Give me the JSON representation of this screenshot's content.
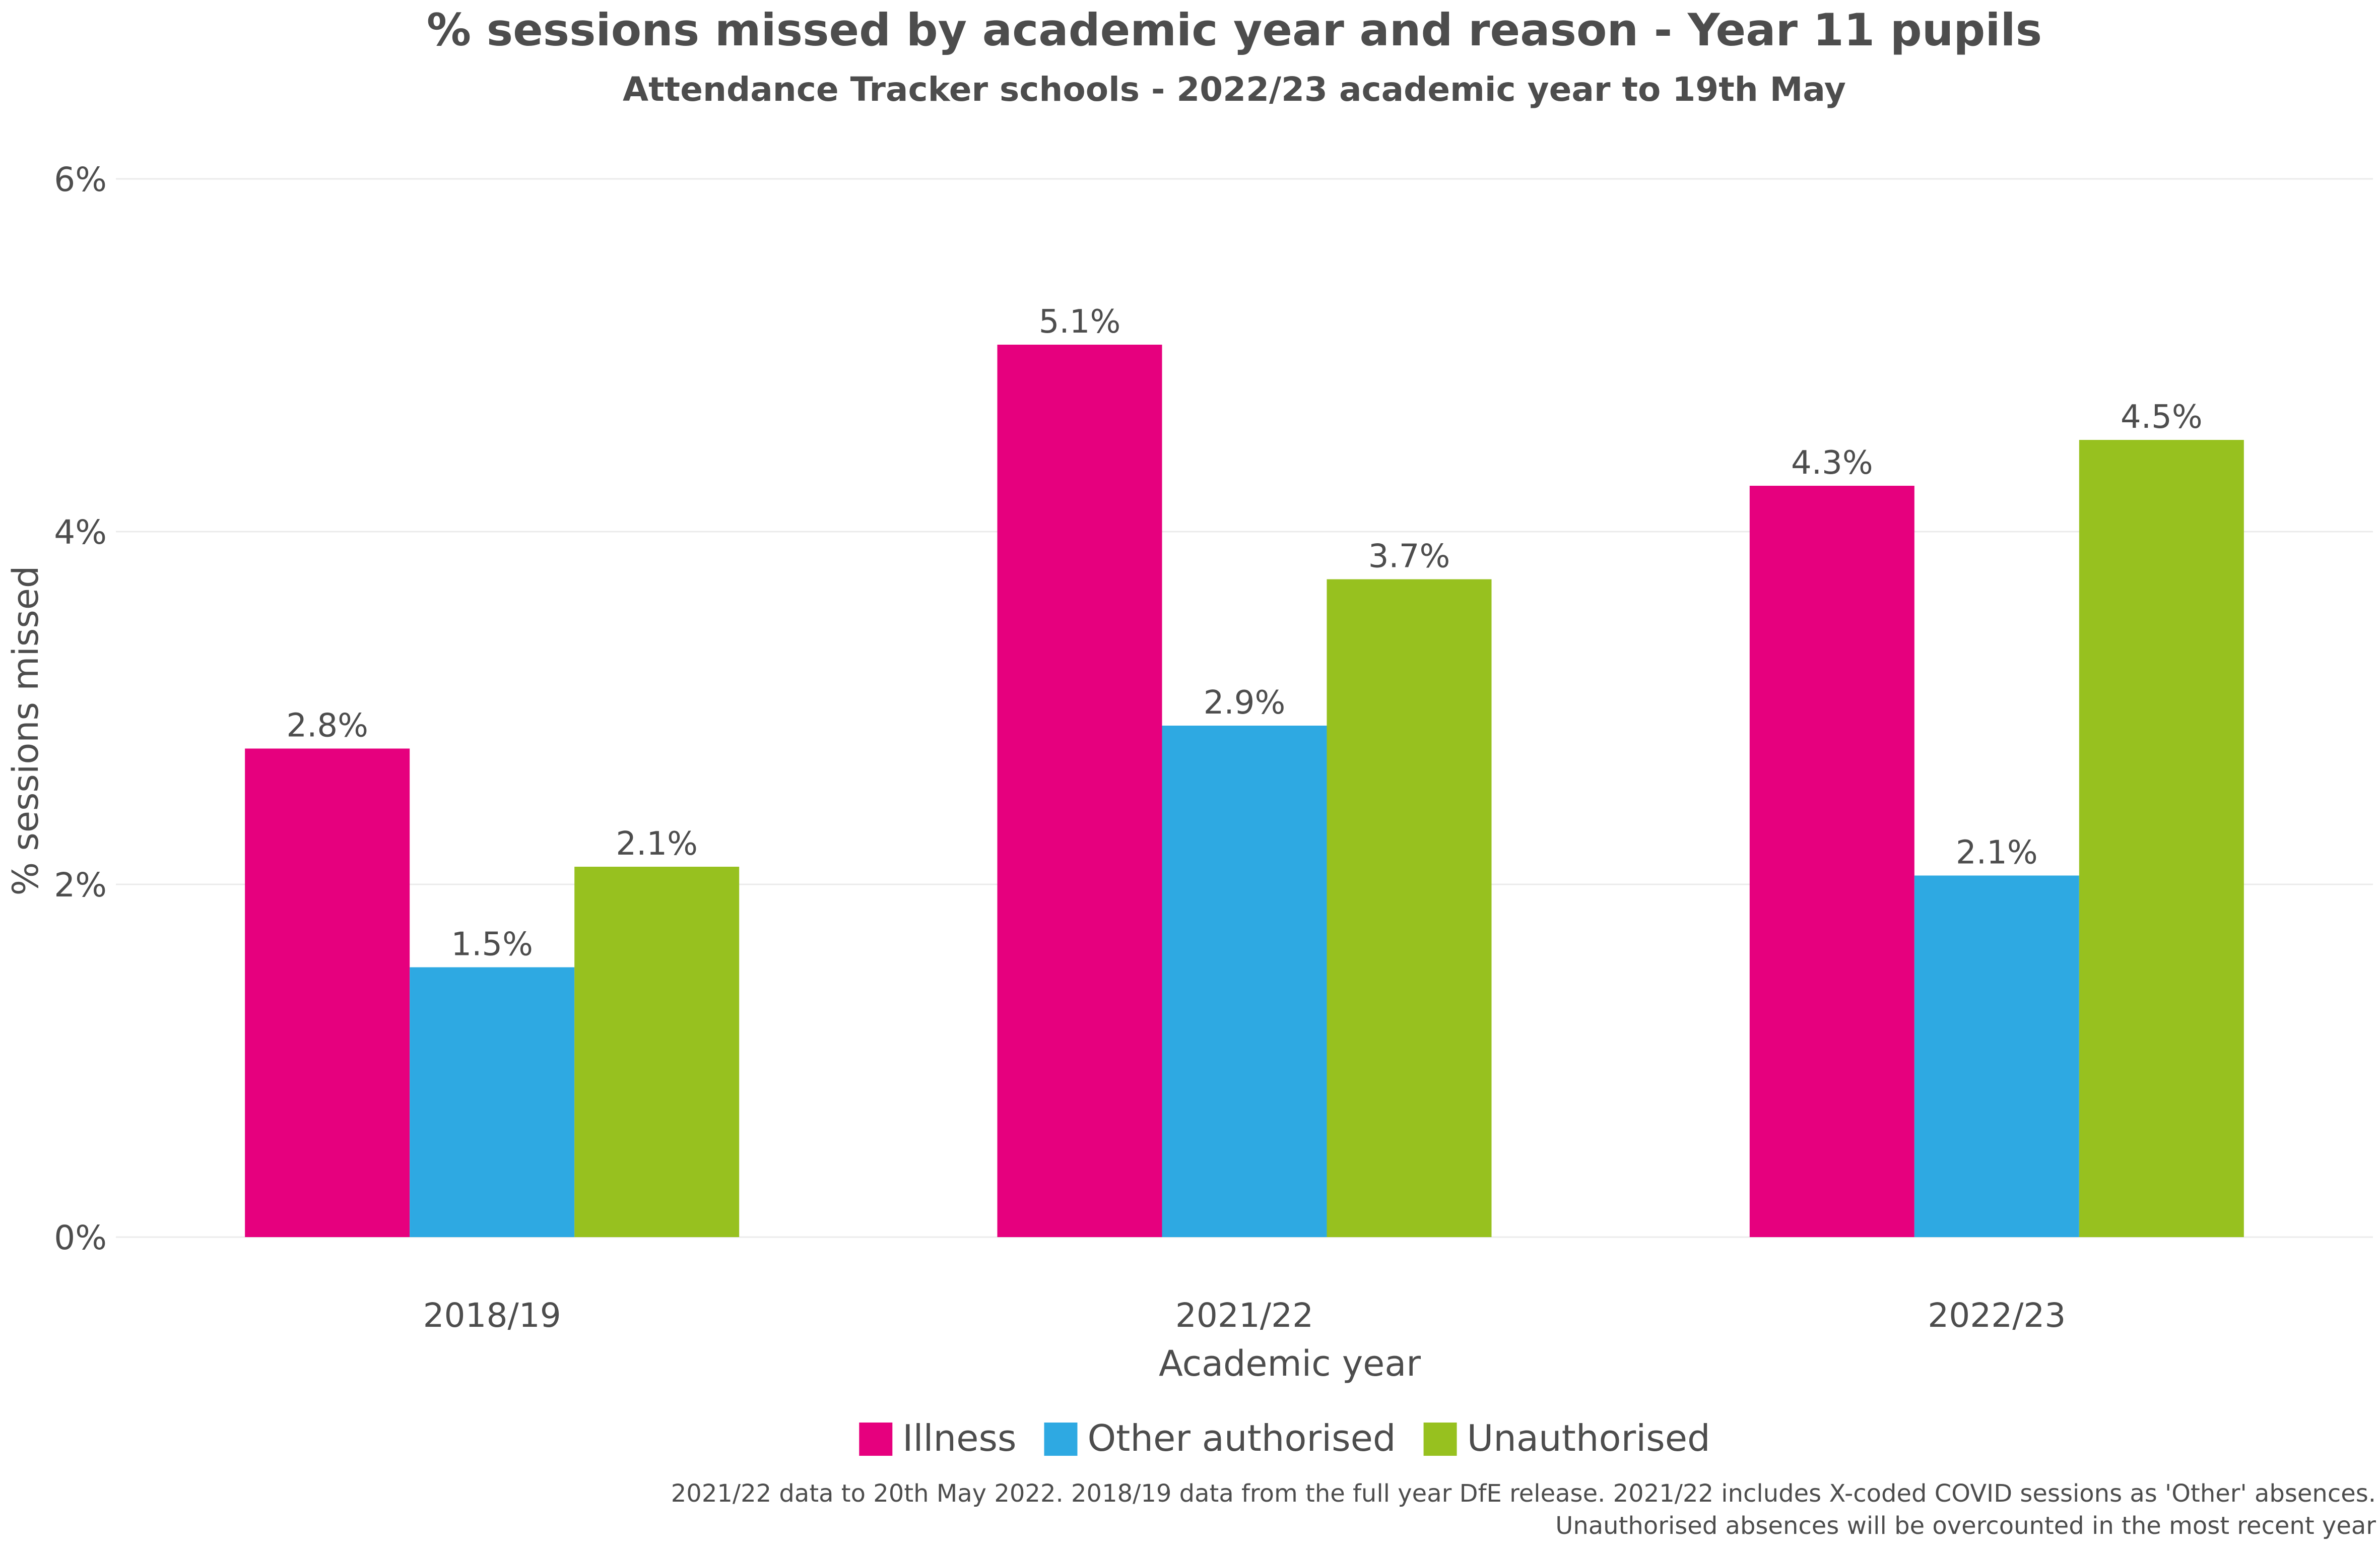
{
  "chart_data": {
    "type": "bar",
    "title": "% sessions missed by academic year and reason - Year 11 pupils",
    "subtitle": "Attendance Tracker schools - 2022/23 academic year to 19th May",
    "xlabel": "Academic year",
    "ylabel": "% sessions missed",
    "ylim": [
      0,
      6
    ],
    "yticks": [
      0,
      2,
      4,
      6
    ],
    "ytick_labels": [
      "0%",
      "2%",
      "4%",
      "6%"
    ],
    "categories": [
      "2018/19",
      "2021/22",
      "2022/23"
    ],
    "series": [
      {
        "name": "Illness",
        "color": "#e6007e",
        "values": [
          2.77,
          5.06,
          4.26
        ],
        "labels": [
          "2.8%",
          "5.1%",
          "4.3%"
        ]
      },
      {
        "name": "Other authorised",
        "color": "#2ea9e2",
        "values": [
          1.53,
          2.9,
          2.05
        ],
        "labels": [
          "1.5%",
          "2.9%",
          "2.1%"
        ]
      },
      {
        "name": "Unauthorised",
        "color": "#97c11f",
        "values": [
          2.1,
          3.73,
          4.52
        ],
        "labels": [
          "2.1%",
          "3.7%",
          "4.5%"
        ]
      }
    ],
    "grid": true,
    "legend_position": "bottom",
    "caption_lines": [
      "2021/22 data to 20th May 2022. 2018/19 data from the full year DfE release. 2021/22 includes X-coded COVID sessions as 'Other' absences.",
      "Unauthorised absences will be overcounted in the most recent year"
    ]
  }
}
